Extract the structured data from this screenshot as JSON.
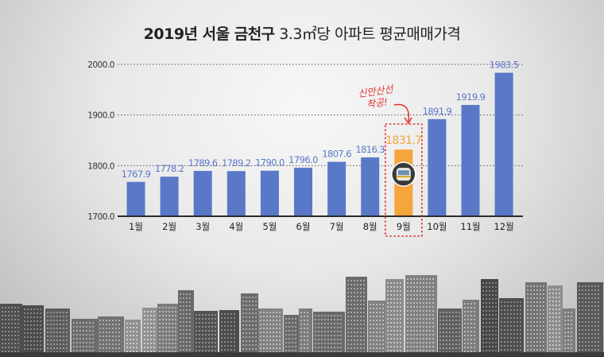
{
  "title": {
    "bold": "2019년 서울 금천구",
    "rest": "3.3㎡당 아파트 평균매매가격"
  },
  "annotation": "신안산선 착공!",
  "colors": {
    "bar": "#5a78c8",
    "highlight": "#f5a53c",
    "label": "#5a78c8",
    "annotation": "#e0322c"
  },
  "chart_data": {
    "type": "bar",
    "title": "2019년 서울 금천구 3.3㎡당 아파트 평균매매가격",
    "categories": [
      "1월",
      "2월",
      "3월",
      "4월",
      "5월",
      "6월",
      "7월",
      "8월",
      "9월",
      "10월",
      "11월",
      "12월"
    ],
    "values": [
      1767.9,
      1778.2,
      1789.6,
      1789.2,
      1790.0,
      1796.0,
      1807.6,
      1816.3,
      1831.7,
      1891.9,
      1919.9,
      1983.5
    ],
    "value_labels": [
      "1767.9",
      "1778.2",
      "1789.6",
      "1789.2",
      "1790.0",
      "1796.0",
      "1807.6",
      "1816.3",
      "1831.7",
      "1891.9",
      "1919.9",
      "1983.5"
    ],
    "highlight_category": "9월",
    "ylim": [
      1700,
      2000
    ],
    "yticks": [
      1700,
      1800,
      1900,
      2000
    ],
    "ytick_labels": [
      "1700.0",
      "1800.0",
      "1900.0",
      "2000.0"
    ],
    "grid": true,
    "xlabel": "",
    "ylabel": ""
  }
}
